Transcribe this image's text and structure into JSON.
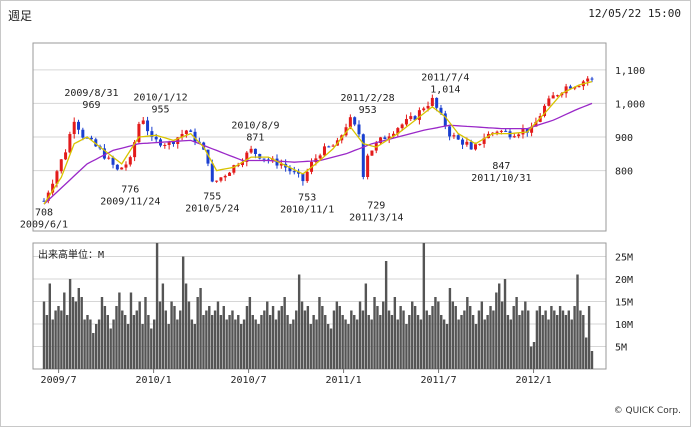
{
  "header": {
    "title": "週足",
    "timestamp": "12/05/22 15:00"
  },
  "footer": {
    "copyright": "© QUICK Corp."
  },
  "chart_data": [
    {
      "type": "candlestick",
      "title": "",
      "ylim": [
        620,
        1180
      ],
      "y_ticks": [
        800,
        900,
        1000,
        1100
      ],
      "y_tick_labels": [
        "800",
        "900",
        "1,000",
        "1,100"
      ],
      "grid": true,
      "colors": {
        "up": "#e31b1b",
        "down": "#1a3fd0",
        "ma_short": "#d8c400",
        "ma_long": "#9a28c8"
      },
      "price_path": [
        [
          0,
          710
        ],
        [
          3,
          800
        ],
        [
          5,
          860
        ],
        [
          7,
          955
        ],
        [
          9,
          905
        ],
        [
          13,
          860
        ],
        [
          17,
          800
        ],
        [
          20,
          830
        ],
        [
          22,
          940
        ],
        [
          23,
          955
        ],
        [
          25,
          890
        ],
        [
          29,
          880
        ],
        [
          33,
          920
        ],
        [
          36,
          880
        ],
        [
          38,
          830
        ],
        [
          39,
          760
        ],
        [
          42,
          790
        ],
        [
          45,
          825
        ],
        [
          48,
          860
        ],
        [
          52,
          830
        ],
        [
          55,
          820
        ],
        [
          58,
          790
        ],
        [
          60,
          770
        ],
        [
          62,
          820
        ],
        [
          64,
          855
        ],
        [
          68,
          880
        ],
        [
          70,
          935
        ],
        [
          71,
          950
        ],
        [
          73,
          910
        ],
        [
          74,
          790
        ],
        [
          75,
          850
        ],
        [
          78,
          890
        ],
        [
          82,
          930
        ],
        [
          86,
          960
        ],
        [
          88,
          990
        ],
        [
          90,
          1010
        ],
        [
          92,
          960
        ],
        [
          94,
          910
        ],
        [
          96,
          890
        ],
        [
          98,
          880
        ],
        [
          99,
          855
        ],
        [
          102,
          900
        ],
        [
          105,
          920
        ],
        [
          108,
          910
        ],
        [
          111,
          920
        ],
        [
          113,
          920
        ],
        [
          116,
          990
        ],
        [
          118,
          1020
        ],
        [
          121,
          1050
        ],
        [
          124,
          1060
        ],
        [
          126,
          1075
        ],
        [
          127,
          1070
        ]
      ],
      "ma_short_path": [
        [
          0,
          700
        ],
        [
          4,
          780
        ],
        [
          7,
          880
        ],
        [
          10,
          900
        ],
        [
          14,
          860
        ],
        [
          18,
          820
        ],
        [
          22,
          900
        ],
        [
          26,
          905
        ],
        [
          30,
          890
        ],
        [
          34,
          910
        ],
        [
          37,
          870
        ],
        [
          40,
          800
        ],
        [
          44,
          810
        ],
        [
          48,
          840
        ],
        [
          52,
          840
        ],
        [
          56,
          815
        ],
        [
          60,
          790
        ],
        [
          63,
          820
        ],
        [
          67,
          865
        ],
        [
          71,
          930
        ],
        [
          74,
          880
        ],
        [
          77,
          870
        ],
        [
          82,
          910
        ],
        [
          86,
          950
        ],
        [
          90,
          990
        ],
        [
          93,
          960
        ],
        [
          96,
          910
        ],
        [
          100,
          880
        ],
        [
          104,
          910
        ],
        [
          108,
          910
        ],
        [
          112,
          915
        ],
        [
          116,
          970
        ],
        [
          120,
          1030
        ],
        [
          124,
          1055
        ],
        [
          127,
          1065
        ]
      ],
      "ma_long_path": [
        [
          0,
          700
        ],
        [
          5,
          760
        ],
        [
          10,
          820
        ],
        [
          16,
          860
        ],
        [
          22,
          880
        ],
        [
          28,
          885
        ],
        [
          34,
          890
        ],
        [
          40,
          860
        ],
        [
          46,
          830
        ],
        [
          52,
          830
        ],
        [
          58,
          825
        ],
        [
          64,
          830
        ],
        [
          70,
          850
        ],
        [
          76,
          880
        ],
        [
          82,
          900
        ],
        [
          88,
          920
        ],
        [
          94,
          935
        ],
        [
          100,
          930
        ],
        [
          106,
          925
        ],
        [
          112,
          925
        ],
        [
          118,
          950
        ],
        [
          124,
          985
        ],
        [
          127,
          1000
        ]
      ],
      "annotations": [
        {
          "week": 0,
          "value": 708,
          "label": "708",
          "sub": "2009/6/1",
          "pos": "below"
        },
        {
          "week": 11,
          "value": 969,
          "label": "969",
          "sub": "2009/8/31",
          "pos": "above"
        },
        {
          "week": 20,
          "value": 776,
          "label": "776",
          "sub": "2009/11/24",
          "pos": "below"
        },
        {
          "week": 27,
          "value": 955,
          "label": "955",
          "sub": "2010/1/12",
          "pos": "above"
        },
        {
          "week": 39,
          "value": 755,
          "label": "755",
          "sub": "2010/5/24",
          "pos": "below"
        },
        {
          "week": 49,
          "value": 871,
          "label": "871",
          "sub": "2010/8/9",
          "pos": "above"
        },
        {
          "week": 61,
          "value": 753,
          "label": "753",
          "sub": "2010/11/1",
          "pos": "below"
        },
        {
          "week": 75,
          "value": 953,
          "label": "953",
          "sub": "2011/2/28",
          "pos": "above"
        },
        {
          "week": 77,
          "value": 729,
          "label": "729",
          "sub": "2011/3/14",
          "pos": "below"
        },
        {
          "week": 93,
          "value": 1014,
          "label": "1,014",
          "sub": "2011/7/4",
          "pos": "above"
        },
        {
          "week": 106,
          "value": 847,
          "label": "847",
          "sub": "2011/10/31",
          "pos": "below"
        }
      ]
    },
    {
      "type": "bar",
      "title": "出来高単位：M",
      "ylim": [
        0,
        28
      ],
      "y_ticks": [
        5,
        10,
        15,
        20,
        25
      ],
      "y_tick_labels": [
        "5M",
        "10M",
        "15M",
        "20M",
        "25M"
      ],
      "color": "#555555",
      "x_ticks": [
        {
          "week": 4,
          "label": "2009/7"
        },
        {
          "week": 30,
          "label": "2010/1"
        },
        {
          "week": 56,
          "label": "2010/7"
        },
        {
          "week": 82,
          "label": "2011/1"
        },
        {
          "week": 108,
          "label": "2011/7"
        },
        {
          "week": 134,
          "label": "2012/1"
        }
      ],
      "values": [
        15,
        12,
        19,
        11,
        13,
        14,
        13,
        17,
        12,
        20,
        16,
        15,
        18,
        16,
        11,
        12,
        11,
        8,
        10,
        11,
        16,
        14,
        12,
        9,
        11,
        14,
        17,
        13,
        12,
        10,
        17,
        12,
        13,
        15,
        10,
        16,
        12,
        9,
        11,
        28,
        15,
        19,
        13,
        10,
        15,
        14,
        11,
        13,
        25,
        19,
        15,
        11,
        10,
        16,
        18,
        12,
        13,
        14,
        12,
        13,
        15,
        12,
        14,
        11,
        12,
        13,
        11,
        12,
        10,
        11,
        14,
        16,
        12,
        11,
        10,
        12,
        13,
        15,
        12,
        14,
        11,
        13,
        14,
        16,
        12,
        10,
        11,
        13,
        21,
        15,
        13,
        14,
        10,
        12,
        11,
        16,
        14,
        12,
        10,
        9,
        13,
        15,
        14,
        12,
        11,
        10,
        13,
        12,
        11,
        15,
        13,
        19,
        12,
        11,
        16,
        14,
        12,
        15,
        24,
        13,
        12,
        16,
        11,
        14,
        13,
        10,
        12,
        15,
        14,
        12,
        11,
        28,
        13,
        12,
        14,
        16,
        15,
        12,
        11,
        10,
        18,
        15,
        14,
        11,
        12,
        13,
        16,
        14,
        12,
        10,
        13,
        15,
        11,
        12,
        14,
        13,
        17,
        19,
        15,
        20,
        12,
        11,
        14,
        16,
        12,
        13,
        15,
        13,
        5,
        6,
        13,
        14,
        12,
        13,
        11,
        14,
        13,
        12,
        14,
        13,
        12,
        13,
        11,
        14,
        21,
        13,
        12,
        7,
        14,
        4
      ]
    }
  ]
}
